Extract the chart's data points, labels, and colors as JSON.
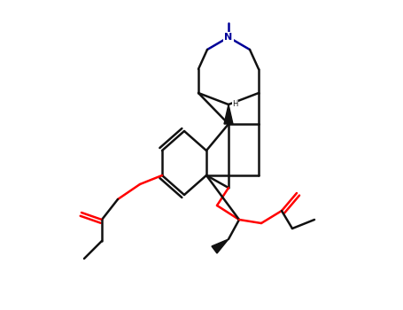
{
  "background": "#ffffff",
  "bond_color": "#111111",
  "bond_lw": 1.8,
  "oxygen_color": "#ff0000",
  "nitrogen_color": "#000099",
  "figsize": [
    4.55,
    3.5
  ],
  "dpi": 100
}
